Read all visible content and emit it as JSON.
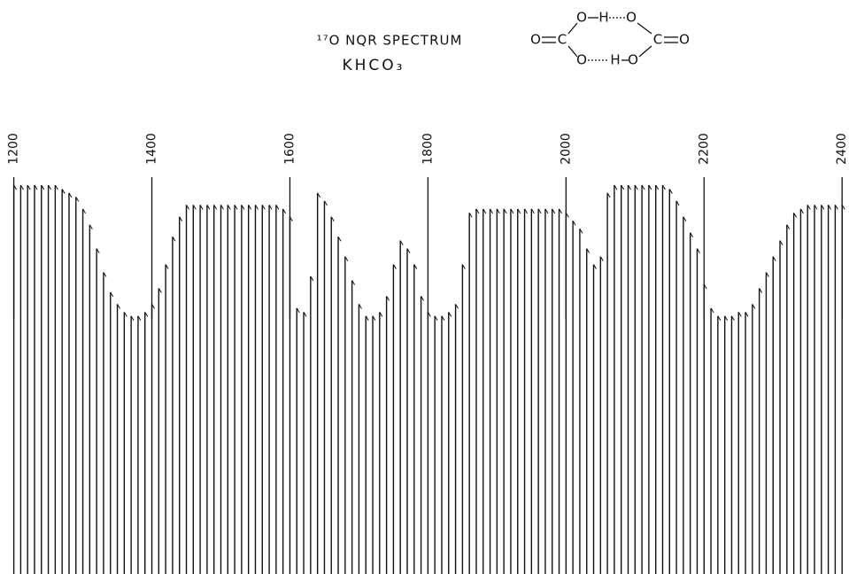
{
  "chart_data": {
    "type": "spectrum",
    "title": "¹⁷O NQR SPECTRUM",
    "subtitle": "KHCO₃",
    "x": [
      1200,
      1210,
      1220,
      1230,
      1240,
      1250,
      1260,
      1270,
      1280,
      1290,
      1300,
      1310,
      1320,
      1330,
      1340,
      1350,
      1360,
      1370,
      1380,
      1390,
      1400,
      1410,
      1420,
      1430,
      1440,
      1450,
      1460,
      1470,
      1480,
      1490,
      1500,
      1510,
      1520,
      1530,
      1540,
      1550,
      1560,
      1570,
      1580,
      1590,
      1600,
      1610,
      1620,
      1630,
      1640,
      1650,
      1660,
      1670,
      1680,
      1690,
      1700,
      1710,
      1720,
      1730,
      1740,
      1750,
      1760,
      1770,
      1780,
      1790,
      1800,
      1810,
      1820,
      1830,
      1840,
      1850,
      1860,
      1870,
      1880,
      1890,
      1900,
      1910,
      1920,
      1930,
      1940,
      1950,
      1960,
      1970,
      1980,
      1990,
      2000,
      2010,
      2020,
      2030,
      2040,
      2050,
      2060,
      2070,
      2080,
      2090,
      2100,
      2110,
      2120,
      2130,
      2140,
      2150,
      2160,
      2170,
      2180,
      2190,
      2200,
      2210,
      2220,
      2230,
      2240,
      2250,
      2260,
      2270,
      2280,
      2290,
      2300,
      2310,
      2320,
      2330,
      2340,
      2350,
      2360,
      2370,
      2380,
      2390,
      2400
    ],
    "values": [
      98,
      98,
      98,
      98,
      98,
      98,
      98,
      97,
      96,
      95,
      92,
      88,
      82,
      76,
      71,
      68,
      66,
      65,
      65,
      66,
      68,
      72,
      78,
      85,
      90,
      93,
      93,
      93,
      93,
      93,
      93,
      93,
      93,
      93,
      93,
      93,
      93,
      93,
      93,
      92,
      90,
      67,
      66,
      75,
      96,
      94,
      90,
      85,
      80,
      74,
      68,
      65,
      65,
      66,
      70,
      78,
      84,
      82,
      78,
      70,
      66,
      65,
      65,
      66,
      68,
      78,
      91,
      92,
      92,
      92,
      92,
      92,
      92,
      92,
      92,
      92,
      92,
      92,
      92,
      92,
      91,
      89,
      87,
      82,
      78,
      80,
      96,
      98,
      98,
      98,
      98,
      98,
      98,
      98,
      98,
      97,
      94,
      90,
      86,
      82,
      73,
      67,
      65,
      65,
      65,
      66,
      66,
      68,
      72,
      76,
      80,
      84,
      88,
      91,
      92,
      93,
      93,
      93,
      93,
      93,
      93
    ],
    "color": "#111111",
    "xlim": [
      1180,
      2410
    ],
    "xticks": [
      1200,
      1400,
      1600,
      1800,
      2000,
      2200,
      2400
    ],
    "ylim": [
      0,
      100
    ]
  },
  "structure": {
    "atoms": [
      "O",
      "C",
      "O",
      "H",
      "O",
      "C",
      "O",
      "O",
      "H",
      "O"
    ]
  }
}
